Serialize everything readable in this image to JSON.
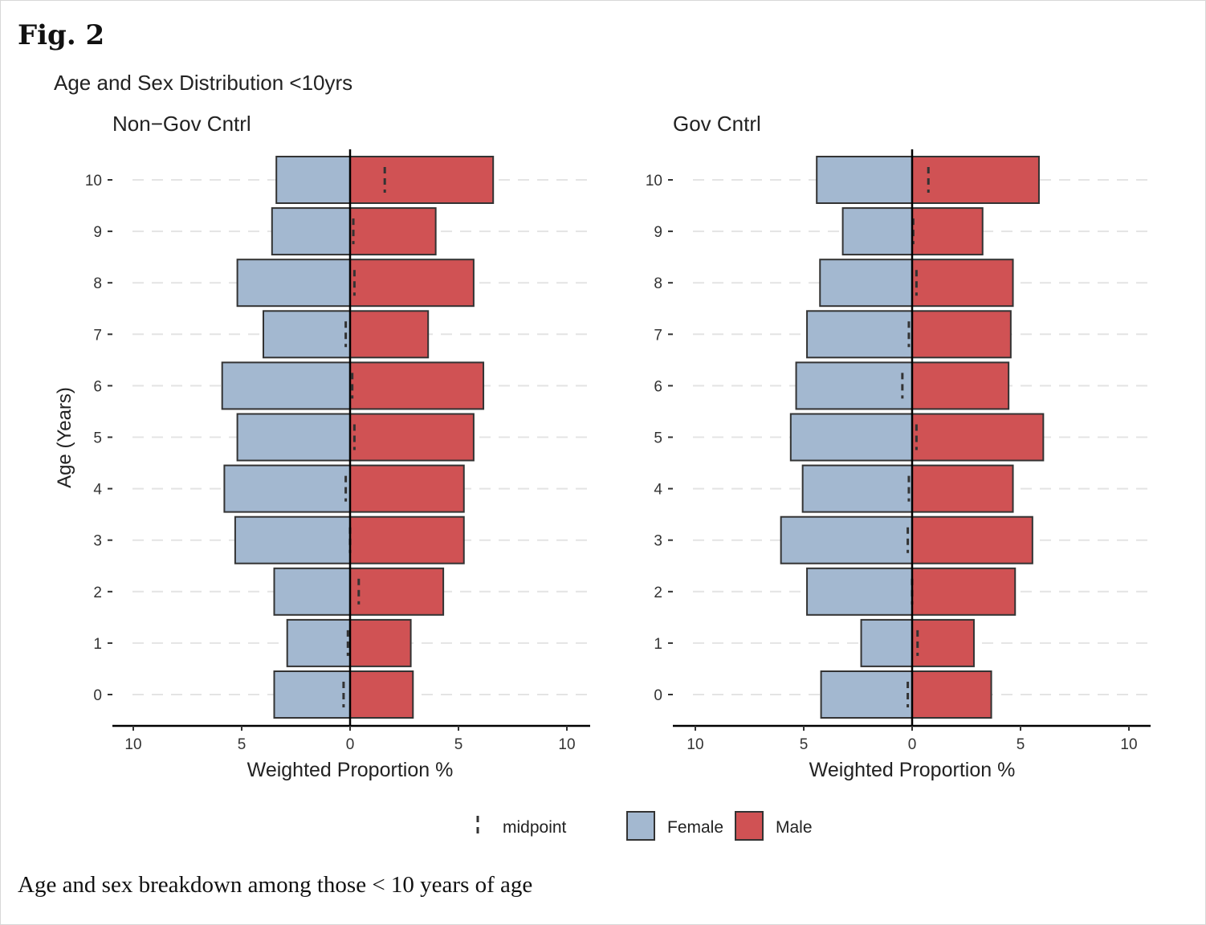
{
  "figure_label": "Fig. 2",
  "caption": "Age and sex breakdown among those < 10 years of age",
  "chart_data": {
    "type": "bar",
    "subtype": "population-pyramid",
    "title": "Age and Sex Distribution <10yrs",
    "ylabel": "Age (Years)",
    "xlabel": "Weighted Proportion %",
    "xlim": [
      -11,
      11
    ],
    "x_ticks": [
      -10,
      -5,
      0,
      5,
      10
    ],
    "x_tick_labels": [
      "10",
      "5",
      "0",
      "5",
      "10"
    ],
    "categories": [
      "0",
      "1",
      "2",
      "3",
      "4",
      "5",
      "6",
      "7",
      "8",
      "9",
      "10"
    ],
    "colors": {
      "Female": "#a3b8d0",
      "Male": "#d05254"
    },
    "legend": {
      "position": "bottom",
      "items": [
        "midpoint",
        "Female",
        "Male"
      ]
    },
    "panels": [
      {
        "title": "Non−Gov Cntrl",
        "series": [
          {
            "name": "Female",
            "values": [
              3.5,
              2.9,
              3.5,
              5.3,
              5.8,
              5.2,
              5.9,
              4.0,
              5.2,
              3.6,
              3.4
            ]
          },
          {
            "name": "Male",
            "values": [
              2.9,
              2.8,
              4.3,
              5.25,
              5.25,
              5.7,
              6.15,
              3.6,
              5.7,
              3.95,
              6.6
            ]
          },
          {
            "name": "midpoint",
            "values": [
              -0.3,
              -0.1,
              0.4,
              0.0,
              -0.2,
              0.2,
              0.1,
              -0.2,
              0.2,
              0.15,
              1.6
            ]
          }
        ]
      },
      {
        "title": "Gov Cntrl",
        "series": [
          {
            "name": "Female",
            "values": [
              4.2,
              2.35,
              4.85,
              6.05,
              5.05,
              5.6,
              5.35,
              4.85,
              4.25,
              3.2,
              4.4
            ]
          },
          {
            "name": "Male",
            "values": [
              3.65,
              2.85,
              4.75,
              5.55,
              4.65,
              6.05,
              4.45,
              4.55,
              4.65,
              3.25,
              5.85
            ]
          },
          {
            "name": "midpoint",
            "values": [
              -0.2,
              0.25,
              0.0,
              -0.2,
              -0.15,
              0.2,
              -0.45,
              -0.15,
              0.2,
              0.05,
              0.75
            ]
          }
        ]
      }
    ]
  }
}
